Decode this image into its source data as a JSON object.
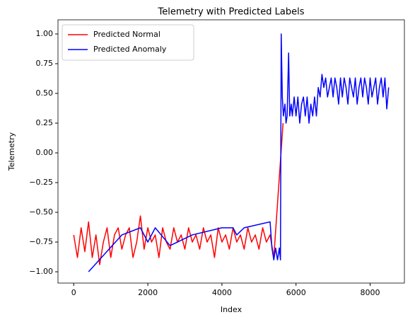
{
  "chart_data": {
    "type": "line",
    "title": "Telemetry with Predicted Labels",
    "x_label": "Index",
    "y_label": "Telemetry",
    "legend": "upper left",
    "grid": false,
    "xlim": [
      -425,
      8925
    ],
    "ylim": [
      -1.095,
      1.119
    ],
    "xticks": [
      0,
      2000,
      4000,
      6000,
      8000
    ],
    "yticks": [
      {
        "value": -1,
        "label": "−1.00"
      },
      {
        "value": -0.75,
        "label": "−0.75"
      },
      {
        "value": -0.5,
        "label": "−0.50"
      },
      {
        "value": -0.25,
        "label": "−0.25"
      },
      {
        "value": 0,
        "label": "0.00"
      },
      {
        "value": 0.25,
        "label": "0.25"
      },
      {
        "value": 0.5,
        "label": "0.50"
      },
      {
        "value": 0.75,
        "label": "0.75"
      },
      {
        "value": 1,
        "label": "1.00"
      }
    ],
    "series": [
      {
        "name": "Predicted Normal",
        "color": "#ff0000",
        "x": [
          0,
          100,
          200,
          300,
          400,
          500,
          600,
          700,
          800,
          900,
          1000,
          1100,
          1200,
          1300,
          1400,
          1500,
          1600,
          1700,
          1800,
          1900,
          2000,
          2100,
          2200,
          2300,
          2400,
          2500,
          2600,
          2700,
          2800,
          2900,
          3000,
          3100,
          3200,
          3300,
          3400,
          3500,
          3600,
          3700,
          3800,
          3900,
          4000,
          4100,
          4200,
          4300,
          4400,
          4500,
          4600,
          4700,
          4800,
          4900,
          5000,
          5100,
          5200,
          5300,
          5400,
          5650
        ],
        "values": [
          -0.69,
          -0.88,
          -0.63,
          -0.83,
          -0.58,
          -0.88,
          -0.69,
          -0.94,
          -0.75,
          -0.63,
          -0.88,
          -0.69,
          -0.63,
          -0.81,
          -0.69,
          -0.63,
          -0.88,
          -0.75,
          -0.53,
          -0.81,
          -0.63,
          -0.75,
          -0.69,
          -0.88,
          -0.63,
          -0.75,
          -0.81,
          -0.63,
          -0.75,
          -0.69,
          -0.81,
          -0.63,
          -0.75,
          -0.69,
          -0.81,
          -0.63,
          -0.75,
          -0.69,
          -0.88,
          -0.63,
          -0.75,
          -0.69,
          -0.81,
          -0.63,
          -0.75,
          -0.69,
          -0.81,
          -0.63,
          -0.75,
          -0.69,
          -0.81,
          -0.63,
          -0.75,
          -0.69,
          -0.88,
          0.25
        ]
      },
      {
        "name": "Predicted Anomaly",
        "color": "#0000ff",
        "x": [
          400,
          1300,
          1800,
          2000,
          2200,
          2600,
          3200,
          4000,
          4300,
          4400,
          4600,
          5300,
          5350,
          5400,
          5450,
          5500,
          5550,
          5580,
          5600,
          5630,
          5660,
          5700,
          5730,
          5760,
          5800,
          5830,
          5870,
          5900,
          5950,
          6000,
          6050,
          6100,
          6150,
          6200,
          6250,
          6300,
          6350,
          6400,
          6450,
          6500,
          6550,
          6600,
          6650,
          6700,
          6750,
          6800,
          6850,
          6900,
          6950,
          7000,
          7050,
          7100,
          7150,
          7200,
          7250,
          7300,
          7350,
          7400,
          7450,
          7500,
          7550,
          7600,
          7650,
          7700,
          7750,
          7800,
          7850,
          7900,
          7950,
          8000,
          8050,
          8100,
          8150,
          8200,
          8250,
          8300,
          8350,
          8400,
          8450,
          8500
        ],
        "values": [
          -1.0,
          -0.69,
          -0.63,
          -0.75,
          -0.63,
          -0.78,
          -0.69,
          -0.63,
          -0.63,
          -0.69,
          -0.63,
          -0.58,
          -0.8,
          -0.9,
          -0.8,
          -0.9,
          -0.8,
          -0.9,
          1.0,
          0.47,
          0.31,
          0.41,
          0.25,
          0.31,
          0.84,
          0.31,
          0.41,
          0.31,
          0.47,
          0.31,
          0.47,
          0.25,
          0.41,
          0.47,
          0.31,
          0.47,
          0.25,
          0.41,
          0.31,
          0.47,
          0.31,
          0.55,
          0.47,
          0.66,
          0.55,
          0.63,
          0.47,
          0.55,
          0.63,
          0.47,
          0.63,
          0.55,
          0.41,
          0.63,
          0.47,
          0.63,
          0.55,
          0.41,
          0.63,
          0.55,
          0.47,
          0.63,
          0.41,
          0.55,
          0.63,
          0.47,
          0.63,
          0.55,
          0.41,
          0.63,
          0.47,
          0.55,
          0.63,
          0.41,
          0.55,
          0.63,
          0.47,
          0.63,
          0.37,
          0.55
        ]
      }
    ]
  }
}
